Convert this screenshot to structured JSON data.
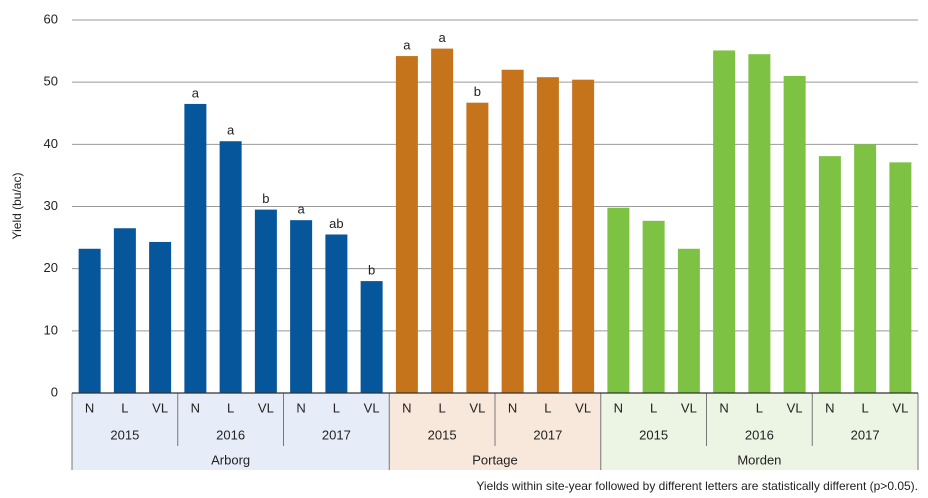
{
  "chart_data": {
    "type": "bar",
    "ylabel": "Yield (bu/ac)",
    "ylim": [
      0,
      60
    ],
    "yticks": [
      0,
      10,
      20,
      30,
      40,
      50,
      60
    ],
    "grid": true,
    "footnote": "Yields within site-year followed by different letters are statistically different (p>0.05).",
    "sites": [
      {
        "name": "Arborg",
        "color": "#06569b",
        "band_color": "#e6edf8",
        "years": [
          {
            "year": "2015",
            "categories": [
              "N",
              "L",
              "VL"
            ],
            "values": [
              23.2,
              26.5,
              24.3
            ],
            "letters": [
              null,
              null,
              null
            ]
          },
          {
            "year": "2016",
            "categories": [
              "N",
              "L",
              "VL"
            ],
            "values": [
              46.5,
              40.5,
              29.5
            ],
            "letters": [
              "a",
              "a",
              "b"
            ]
          },
          {
            "year": "2017",
            "categories": [
              "N",
              "L",
              "VL"
            ],
            "values": [
              27.8,
              25.5,
              18.0
            ],
            "letters": [
              "a",
              "ab",
              "b"
            ]
          }
        ]
      },
      {
        "name": "Portage",
        "color": "#c5741c",
        "band_color": "#f8e8db",
        "years": [
          {
            "year": "2015",
            "categories": [
              "N",
              "L",
              "VL"
            ],
            "values": [
              54.2,
              55.4,
              46.7
            ],
            "letters": [
              "a",
              "a",
              "b"
            ]
          },
          {
            "year": "2017",
            "categories": [
              "N",
              "L",
              "VL"
            ],
            "values": [
              52.0,
              50.8,
              50.4
            ],
            "letters": [
              null,
              null,
              null
            ]
          }
        ]
      },
      {
        "name": "Morden",
        "color": "#7ec243",
        "band_color": "#ecf4e4",
        "years": [
          {
            "year": "2015",
            "categories": [
              "N",
              "L",
              "VL"
            ],
            "values": [
              29.8,
              27.7,
              23.2
            ],
            "letters": [
              null,
              null,
              null
            ]
          },
          {
            "year": "2016",
            "categories": [
              "N",
              "L",
              "VL"
            ],
            "values": [
              55.1,
              54.5,
              51.0
            ],
            "letters": [
              null,
              null,
              null
            ]
          },
          {
            "year": "2017",
            "categories": [
              "N",
              "L",
              "VL"
            ],
            "values": [
              38.1,
              40.0,
              37.1
            ],
            "letters": [
              null,
              null,
              null
            ]
          }
        ]
      }
    ]
  }
}
